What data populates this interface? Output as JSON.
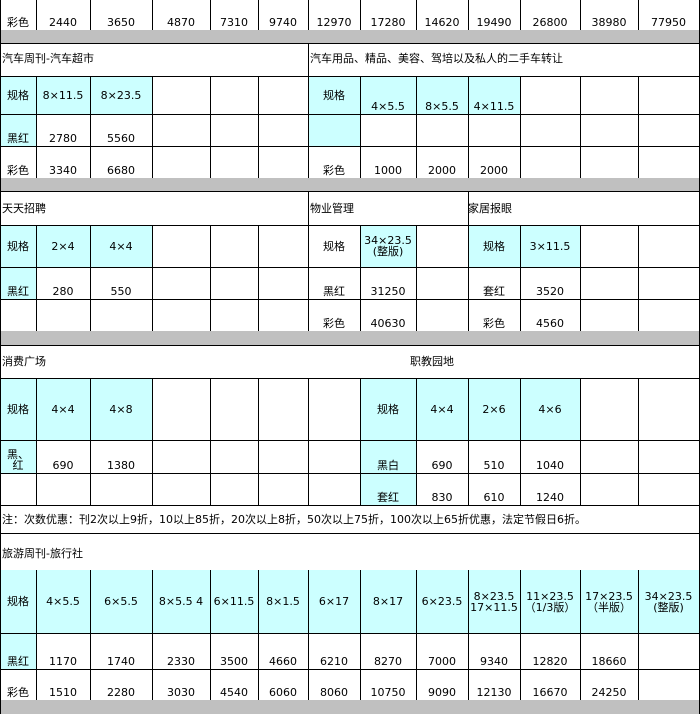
{
  "top_row": {
    "label": "彩色",
    "values": [
      "2440",
      "3650",
      "4870",
      "7310",
      "9740",
      "12970",
      "17280",
      "14620",
      "19490",
      "26800",
      "38980",
      "77950"
    ]
  },
  "auto_weekly": {
    "title": "汽车周刊-汽车超市",
    "spec_label": "规格",
    "sizes": [
      "8×11.5",
      "8×23.5"
    ],
    "rows": [
      {
        "label": "黑红",
        "values": [
          "2780",
          "5560"
        ]
      },
      {
        "label": "彩色",
        "values": [
          "3340",
          "6680"
        ]
      }
    ]
  },
  "auto_supplies": {
    "title": "汽车用品、精品、美容、驾培以及私人的二手车转让",
    "spec_label": "规格",
    "sizes": [
      "4×5.5",
      "8×5.5",
      "4×11.5"
    ],
    "rows": [
      {
        "label": "彩色",
        "values": [
          "1000",
          "2000",
          "2000"
        ]
      }
    ]
  },
  "recruit": {
    "title": "天天招聘",
    "spec_label": "规格",
    "sizes": [
      "2×4",
      "4×4"
    ],
    "rows": [
      {
        "label": "黑红",
        "values": [
          "280",
          "550"
        ]
      }
    ]
  },
  "property": {
    "title": "物业管理",
    "spec_label": "规格",
    "size": "34×23.5\n(整版)",
    "rows": [
      {
        "label": "黑红",
        "value": "31250"
      },
      {
        "label": "彩色",
        "value": "40630"
      }
    ]
  },
  "home": {
    "title": "家居报眼",
    "spec_label": "规格",
    "size": "3×11.5",
    "rows": [
      {
        "label": "套红",
        "value": "3520"
      },
      {
        "label": "彩色",
        "value": "4560"
      }
    ]
  },
  "consumer": {
    "title": "消费广场",
    "spec_label": "规格",
    "sizes": [
      "4×4",
      "4×8"
    ],
    "rows": [
      {
        "label": "黑、\n红",
        "values": [
          "690",
          "1380"
        ]
      }
    ]
  },
  "vocational": {
    "title": "职教园地",
    "spec_label": "规格",
    "sizes": [
      "4×4",
      "2×6",
      "4×6"
    ],
    "rows": [
      {
        "label": "黑白",
        "values": [
          "690",
          "510",
          "1040"
        ]
      },
      {
        "label": "套红",
        "values": [
          "830",
          "610",
          "1240"
        ]
      }
    ]
  },
  "note": "注：次数优惠：刊2次以上9折，10以上85折，20次以上8折，50次以上75折，100次以上65折优惠，法定节假日6折。",
  "travel": {
    "title": "旅游周刊-旅行社",
    "spec_label": "规格",
    "sizes": [
      "4×5.5",
      "6×5.5",
      "8×5.5 4",
      "6×11.5",
      "8×1.5",
      "6×17",
      "8×17",
      "6×23.5",
      "8×23.5\n17×11.5",
      "11×23.5\n（1/3版）",
      "17×23.5\n（半版）",
      "34×23.5\n(整版)"
    ],
    "rows": [
      {
        "label": "黑红",
        "values": [
          "1170",
          "1740",
          "2330",
          "3500",
          "4660",
          "6210",
          "8270",
          "7000",
          "9340",
          "12820",
          "18660",
          ""
        ]
      },
      {
        "label": "彩色",
        "values": [
          "1510",
          "2280",
          "3030",
          "4540",
          "6060",
          "8060",
          "10750",
          "9090",
          "12130",
          "16670",
          "24250",
          ""
        ]
      }
    ]
  }
}
